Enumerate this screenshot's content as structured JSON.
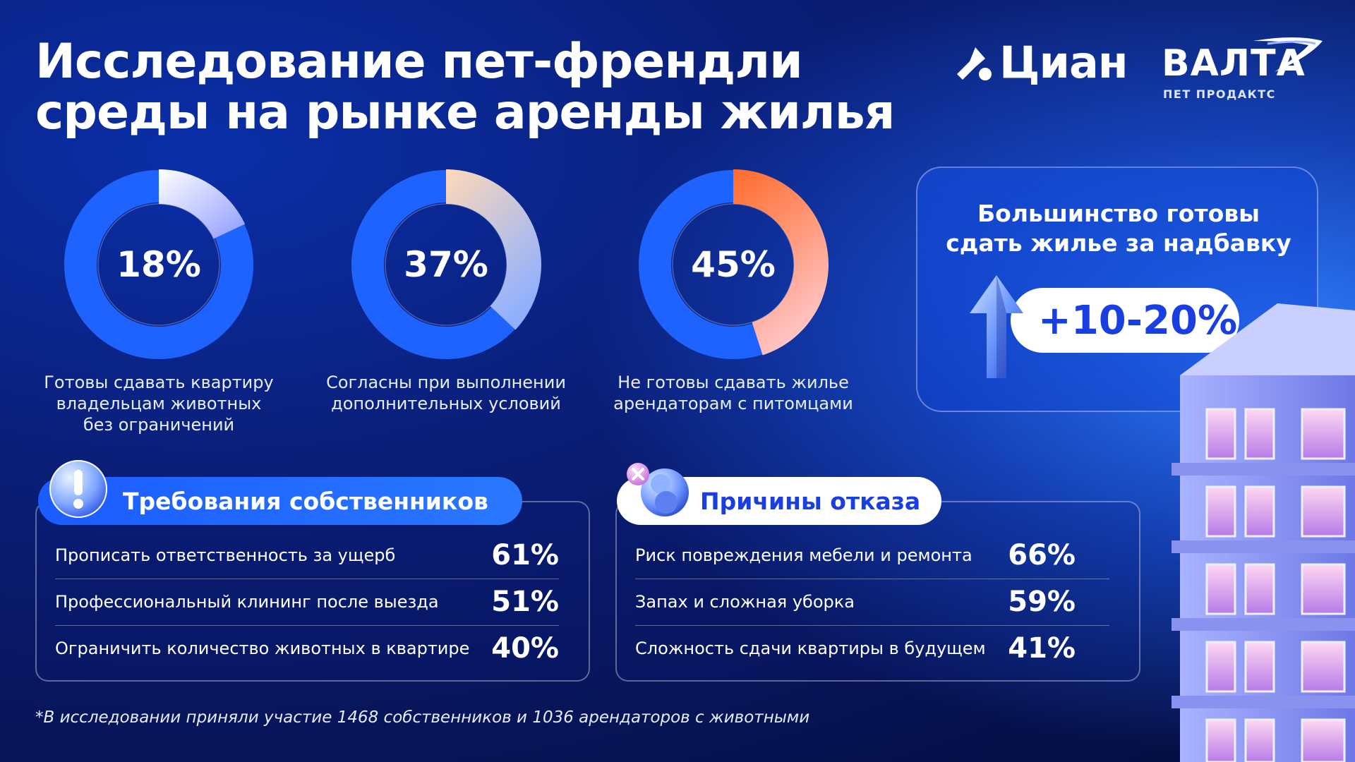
{
  "title": {
    "line1": "Исследование пет-френдли",
    "line2": "среды на рынке аренды жилья"
  },
  "logos": {
    "cian": "Циан",
    "valta": "ВАЛТА",
    "valta_sub": "ПЕТ ПРОДАКТС"
  },
  "chart_data": {
    "type": "pie",
    "categories": [
      "Готовы сдавать квартиру владельцам животных без ограничений",
      "Согласны при выполнении дополнительных условий",
      "Не готовы сдавать жилье арендаторам с питомцами"
    ],
    "values": [
      18,
      37,
      45
    ],
    "value_labels": [
      "18%",
      "37%",
      "45%"
    ],
    "label_lines": [
      [
        "Готовы сдавать квартиру",
        "владельцам животных",
        "без ограничений"
      ],
      [
        "Согласны при выполнении",
        "дополнительных условий"
      ],
      [
        "Не готовы сдавать жилье",
        "арендаторам с питомцами"
      ]
    ],
    "colors": {
      "ring": "#1f63ff",
      "arc1_start": "#ffffff",
      "arc1_end": "#8f9bff",
      "arc2_start": "#ffd9b8",
      "arc2_end": "#8fb0ff",
      "arc3_start": "#ff6a2a",
      "arc3_end": "#ffc4c4"
    }
  },
  "markup_card": {
    "title_line1": "Большинство готовы",
    "title_line2": "сдать жилье за надбавку",
    "value": "+10-20%"
  },
  "requirements": {
    "title": "Требования собственников",
    "icon": "exclamation-icon",
    "rows": [
      {
        "label": "Прописать ответственность за ущерб",
        "value": "61%"
      },
      {
        "label": "Профессиональный клининг после выезда",
        "value": "51%"
      },
      {
        "label": "Ограничить количество животных в квартире",
        "value": "40%"
      }
    ]
  },
  "refusals": {
    "title": "Причины отказа",
    "icon": "pet-bubbles-icon",
    "rows": [
      {
        "label": "Риск повреждения мебели и ремонта",
        "value": "66%"
      },
      {
        "label": "Запах и сложная уборка",
        "value": "59%"
      },
      {
        "label": "Сложность сдачи квартиры в будущем",
        "value": "41%"
      }
    ]
  },
  "footnote": "*В исследовании приняли участие 1468 собственников и 1036 арендаторов с животными"
}
